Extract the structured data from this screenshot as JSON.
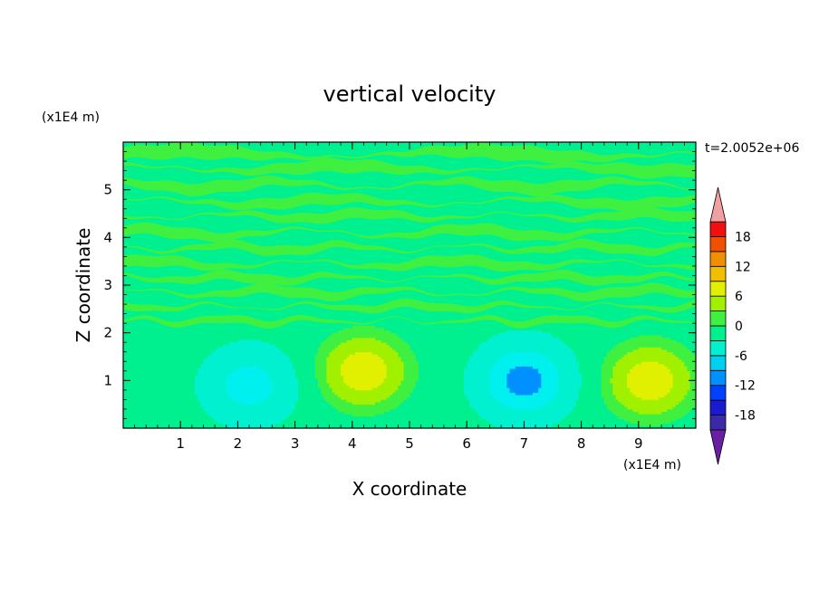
{
  "chart_data": {
    "type": "heatmap",
    "title": "vertical velocity",
    "xlabel": "X coordinate",
    "ylabel": "Z coordinate",
    "x_unit": "(x1E4 m)",
    "y_unit": "(x1E4 m)",
    "time_label": "t=2.0052e+06",
    "xlim": [
      0,
      10
    ],
    "ylim": [
      0,
      6
    ],
    "x_ticks": [
      "1",
      "2",
      "3",
      "4",
      "5",
      "6",
      "7",
      "8",
      "9"
    ],
    "y_ticks": [
      "1",
      "2",
      "3",
      "4",
      "5"
    ],
    "colorbar": {
      "levels": [
        -21,
        -18,
        -15,
        -12,
        -9,
        -6,
        -3,
        0,
        3,
        6,
        9,
        12,
        15,
        18,
        21
      ],
      "tick_labels": [
        "18",
        "12",
        "6",
        "0",
        "-6",
        "-12",
        "-18"
      ],
      "tick_values": [
        18,
        12,
        6,
        0,
        -6,
        -12,
        -18
      ],
      "colors": [
        "#6a1fa0",
        "#3a2aa8",
        "#1a1ad0",
        "#0040ff",
        "#0090ff",
        "#00d0f0",
        "#00f0d0",
        "#00f090",
        "#40f040",
        "#a0f000",
        "#e0f000",
        "#f0c000",
        "#f09000",
        "#f05000",
        "#f01010",
        "#f0a0a0"
      ]
    },
    "features": [
      {
        "type": "updraft",
        "x": 4.2,
        "z": 1.2,
        "peak": 6
      },
      {
        "type": "downdraft",
        "x": 2.2,
        "z": 0.9,
        "peak": -6
      },
      {
        "type": "updraft",
        "x": 9.2,
        "z": 1.0,
        "peak": 6
      },
      {
        "type": "downdraft",
        "x": 7.0,
        "z": 1.0,
        "peak": -9
      }
    ]
  }
}
